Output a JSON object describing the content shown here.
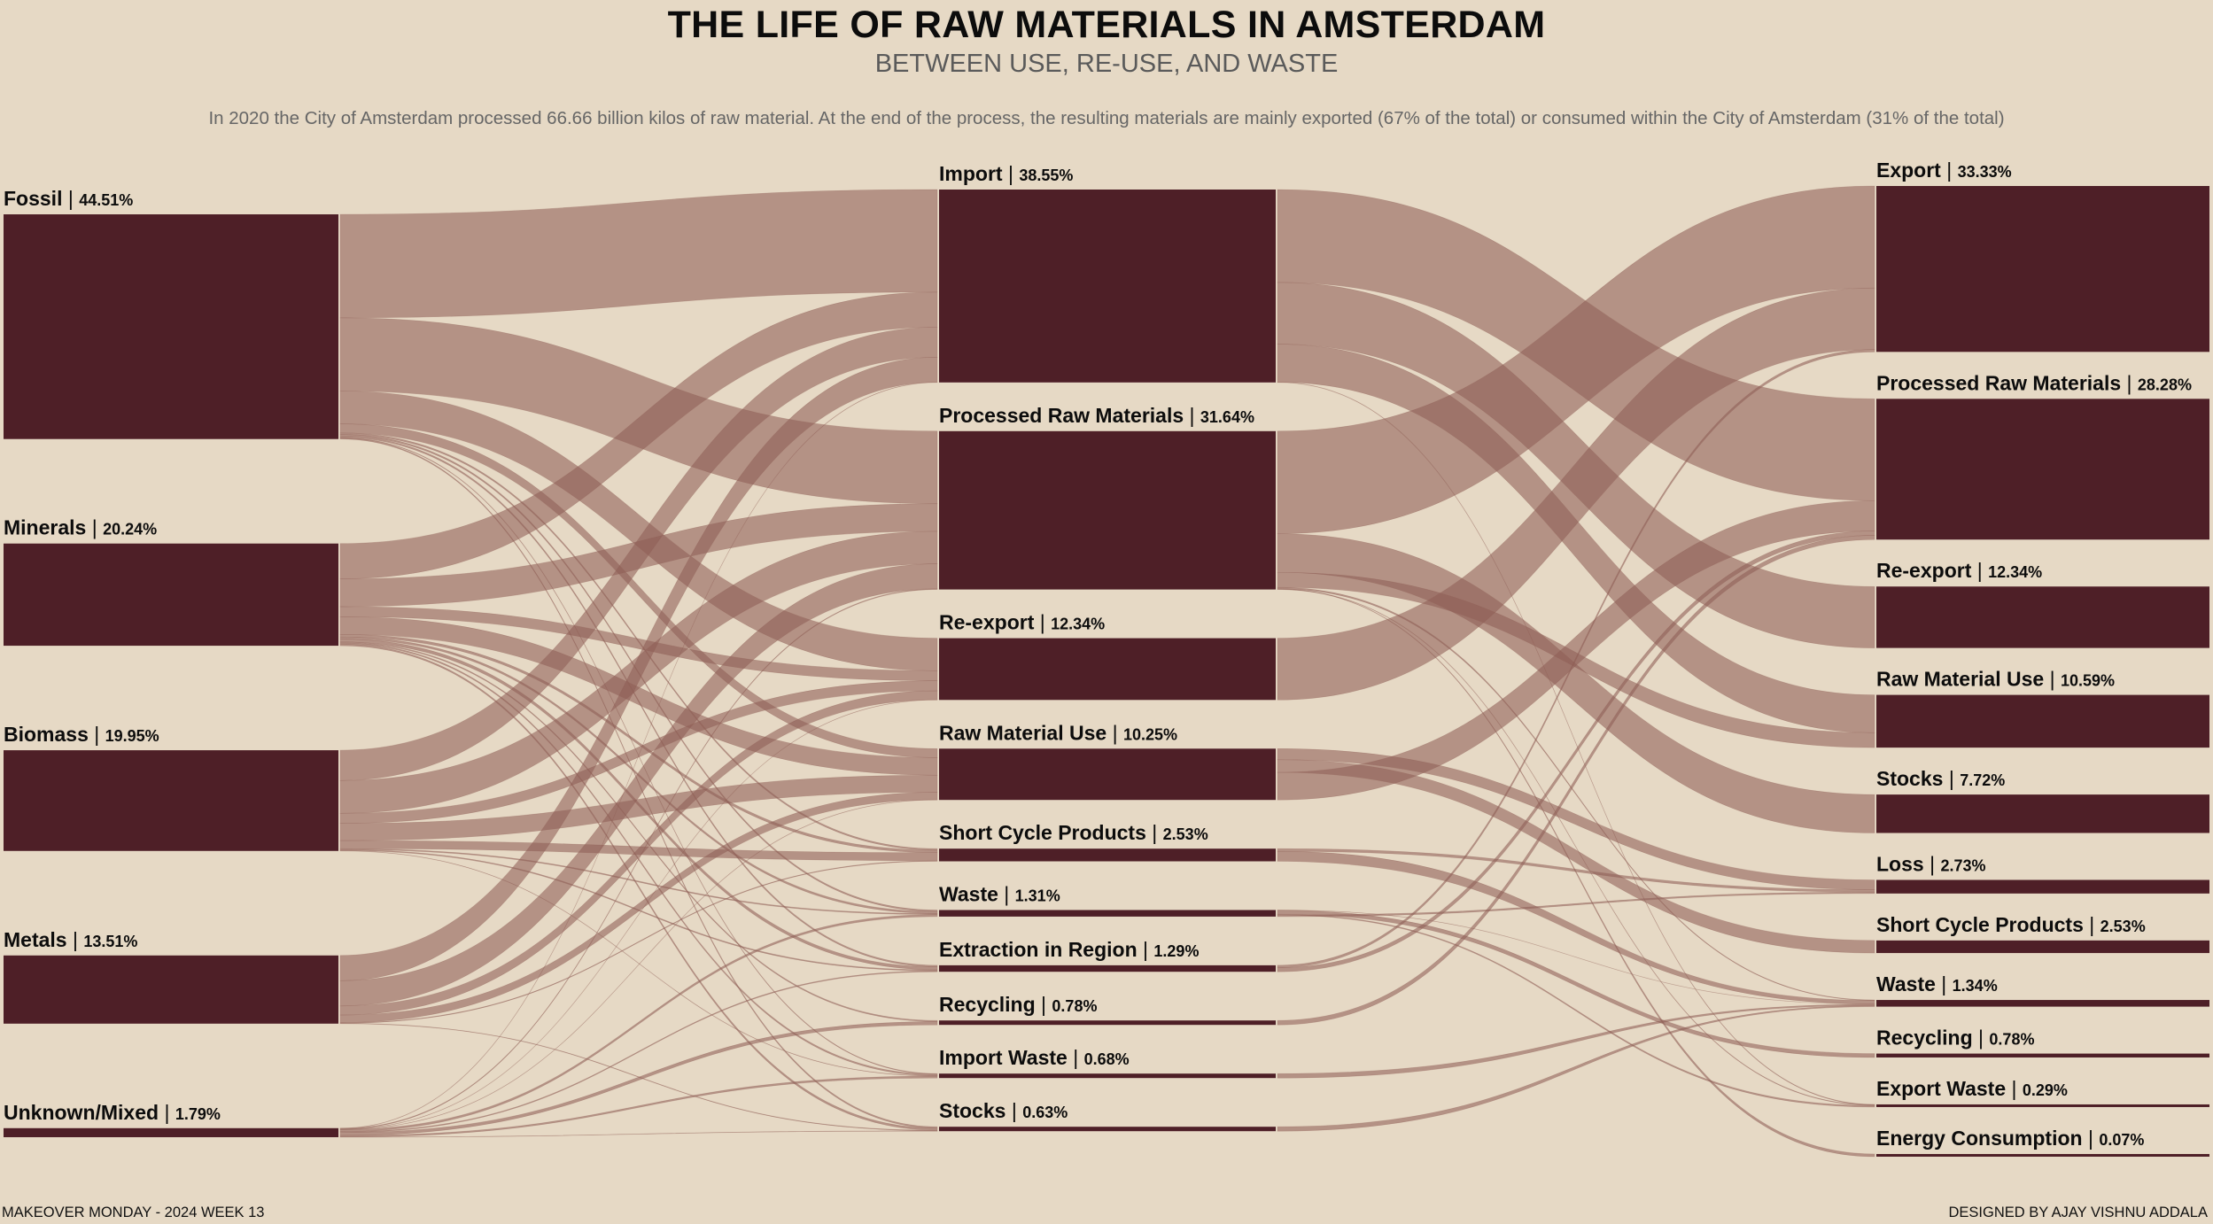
{
  "header": {
    "title": "THE LIFE OF RAW MATERIALS IN AMSTERDAM",
    "subtitle": "BETWEEN USE, RE-USE, AND WASTE",
    "description": "In 2020 the City of Amsterdam processed 66.66 billion kilos of raw material. At the end of the process, the resulting materials are mainly exported (67% of the total) or consumed within the City of Amsterdam (31% of the total)"
  },
  "footer": {
    "left": "MAKEOVER MONDAY - 2024 WEEK 13",
    "right": "DESIGNED BY AJAY VISHNU ADDALA"
  },
  "colors": {
    "background": "#e6d9c5",
    "node": "#4e1f27",
    "link": "#8f5f57"
  },
  "chart_data": {
    "type": "sankey",
    "title": "THE LIFE OF RAW MATERIALS IN AMSTERDAM",
    "unit": "% of total",
    "columns": [
      [
        {
          "id": "src_fossil",
          "name": "Fossil",
          "pct": 44.51,
          "label": "44.51%"
        },
        {
          "id": "src_minerals",
          "name": "Minerals",
          "pct": 20.24,
          "label": "20.24%"
        },
        {
          "id": "src_biomass",
          "name": "Biomass",
          "pct": 19.95,
          "label": "19.95%"
        },
        {
          "id": "src_metals",
          "name": "Metals",
          "pct": 13.51,
          "label": "13.51%"
        },
        {
          "id": "src_unknown",
          "name": "Unknown/Mixed",
          "pct": 1.79,
          "label": "1.79%"
        }
      ],
      [
        {
          "id": "mid_import",
          "name": "Import",
          "pct": 38.55,
          "label": "38.55%"
        },
        {
          "id": "mid_processed",
          "name": "Processed Raw Materials",
          "pct": 31.64,
          "label": "31.64%"
        },
        {
          "id": "mid_reexport",
          "name": "Re-export",
          "pct": 12.34,
          "label": "12.34%"
        },
        {
          "id": "mid_rawuse",
          "name": "Raw Material Use",
          "pct": 10.25,
          "label": "10.25%"
        },
        {
          "id": "mid_shortcycle",
          "name": "Short Cycle Products",
          "pct": 2.53,
          "label": "2.53%"
        },
        {
          "id": "mid_waste",
          "name": "Waste",
          "pct": 1.31,
          "label": "1.31%"
        },
        {
          "id": "mid_extraction",
          "name": "Extraction in Region",
          "pct": 1.29,
          "label": "1.29%"
        },
        {
          "id": "mid_recycling",
          "name": "Recycling",
          "pct": 0.78,
          "label": "0.78%"
        },
        {
          "id": "mid_importwaste",
          "name": "Import Waste",
          "pct": 0.68,
          "label": "0.68%"
        },
        {
          "id": "mid_stocks",
          "name": "Stocks",
          "pct": 0.63,
          "label": "0.63%"
        }
      ],
      [
        {
          "id": "dst_export",
          "name": "Export",
          "pct": 33.33,
          "label": "33.33%"
        },
        {
          "id": "dst_processed",
          "name": "Processed Raw Materials",
          "pct": 28.28,
          "label": "28.28%"
        },
        {
          "id": "dst_reexport",
          "name": "Re-export",
          "pct": 12.34,
          "label": "12.34%"
        },
        {
          "id": "dst_rawuse",
          "name": "Raw Material Use",
          "pct": 10.59,
          "label": "10.59%"
        },
        {
          "id": "dst_stocks",
          "name": "Stocks",
          "pct": 7.72,
          "label": "7.72%"
        },
        {
          "id": "dst_loss",
          "name": "Loss",
          "pct": 2.73,
          "label": "2.73%"
        },
        {
          "id": "dst_shortcycle",
          "name": "Short Cycle Products",
          "pct": 2.53,
          "label": "2.53%"
        },
        {
          "id": "dst_waste",
          "name": "Waste",
          "pct": 1.34,
          "label": "1.34%"
        },
        {
          "id": "dst_recycling",
          "name": "Recycling",
          "pct": 0.78,
          "label": "0.78%"
        },
        {
          "id": "dst_exportwaste",
          "name": "Export Waste",
          "pct": 0.29,
          "label": "0.29%"
        },
        {
          "id": "dst_energy",
          "name": "Energy Consumption",
          "pct": 0.07,
          "label": "0.07%"
        }
      ]
    ],
    "links": [
      {
        "source": "src_fossil",
        "target": "mid_import",
        "value": 20.5
      },
      {
        "source": "src_fossil",
        "target": "mid_processed",
        "value": 14.5
      },
      {
        "source": "src_fossil",
        "target": "mid_reexport",
        "value": 6.5
      },
      {
        "source": "src_fossil",
        "target": "mid_rawuse",
        "value": 1.8
      },
      {
        "source": "src_fossil",
        "target": "mid_shortcycle",
        "value": 0.3
      },
      {
        "source": "src_fossil",
        "target": "mid_waste",
        "value": 0.3
      },
      {
        "source": "src_fossil",
        "target": "mid_extraction",
        "value": 0.31
      },
      {
        "source": "src_fossil",
        "target": "mid_importwaste",
        "value": 0.1
      },
      {
        "source": "src_fossil",
        "target": "mid_stocks",
        "value": 0.2
      },
      {
        "source": "src_minerals",
        "target": "mid_import",
        "value": 7.0
      },
      {
        "source": "src_minerals",
        "target": "mid_processed",
        "value": 5.5
      },
      {
        "source": "src_minerals",
        "target": "mid_reexport",
        "value": 2.0
      },
      {
        "source": "src_minerals",
        "target": "mid_rawuse",
        "value": 3.5
      },
      {
        "source": "src_minerals",
        "target": "mid_shortcycle",
        "value": 0.5
      },
      {
        "source": "src_minerals",
        "target": "mid_waste",
        "value": 0.4
      },
      {
        "source": "src_minerals",
        "target": "mid_extraction",
        "value": 0.6
      },
      {
        "source": "src_minerals",
        "target": "mid_recycling",
        "value": 0.2
      },
      {
        "source": "src_minerals",
        "target": "mid_importwaste",
        "value": 0.24
      },
      {
        "source": "src_minerals",
        "target": "mid_stocks",
        "value": 0.3
      },
      {
        "source": "src_biomass",
        "target": "mid_import",
        "value": 6.0
      },
      {
        "source": "src_biomass",
        "target": "mid_processed",
        "value": 6.5
      },
      {
        "source": "src_biomass",
        "target": "mid_reexport",
        "value": 2.0
      },
      {
        "source": "src_biomass",
        "target": "mid_rawuse",
        "value": 3.4
      },
      {
        "source": "src_biomass",
        "target": "mid_shortcycle",
        "value": 1.6
      },
      {
        "source": "src_biomass",
        "target": "mid_waste",
        "value": 0.2
      },
      {
        "source": "src_biomass",
        "target": "mid_extraction",
        "value": 0.2
      },
      {
        "source": "src_biomass",
        "target": "mid_importwaste",
        "value": 0.05
      },
      {
        "source": "src_metals",
        "target": "mid_import",
        "value": 5.0
      },
      {
        "source": "src_metals",
        "target": "mid_processed",
        "value": 5.0
      },
      {
        "source": "src_metals",
        "target": "mid_reexport",
        "value": 1.8
      },
      {
        "source": "src_metals",
        "target": "mid_rawuse",
        "value": 1.5
      },
      {
        "source": "src_metals",
        "target": "mid_shortcycle",
        "value": 0.13
      },
      {
        "source": "src_metals",
        "target": "mid_stocks",
        "value": 0.08
      },
      {
        "source": "src_unknown",
        "target": "mid_import",
        "value": 0.05
      },
      {
        "source": "src_unknown",
        "target": "mid_processed",
        "value": 0.14
      },
      {
        "source": "src_unknown",
        "target": "mid_reexport",
        "value": 0.04
      },
      {
        "source": "src_unknown",
        "target": "mid_rawuse",
        "value": 0.05
      },
      {
        "source": "src_unknown",
        "target": "mid_waste",
        "value": 0.41
      },
      {
        "source": "src_unknown",
        "target": "mid_extraction",
        "value": 0.18
      },
      {
        "source": "src_unknown",
        "target": "mid_recycling",
        "value": 0.58
      },
      {
        "source": "src_unknown",
        "target": "mid_importwaste",
        "value": 0.29
      },
      {
        "source": "src_unknown",
        "target": "mid_stocks",
        "value": 0.05
      },
      {
        "source": "mid_import",
        "target": "dst_processed",
        "value": 18.55
      },
      {
        "source": "mid_import",
        "target": "dst_reexport",
        "value": 12.34
      },
      {
        "source": "mid_import",
        "target": "dst_rawuse",
        "value": 7.6
      },
      {
        "source": "mid_import",
        "target": "dst_exportwaste",
        "value": 0.06
      },
      {
        "source": "mid_processed",
        "target": "dst_export",
        "value": 20.5
      },
      {
        "source": "mid_processed",
        "target": "dst_stocks",
        "value": 7.72
      },
      {
        "source": "mid_processed",
        "target": "dst_rawuse",
        "value": 2.99
      },
      {
        "source": "mid_processed",
        "target": "dst_waste",
        "value": 0.3
      },
      {
        "source": "mid_processed",
        "target": "dst_energy",
        "value": 0.07
      },
      {
        "source": "mid_processed",
        "target": "dst_exportwaste",
        "value": 0.06
      },
      {
        "source": "mid_reexport",
        "target": "dst_export",
        "value": 12.34
      },
      {
        "source": "mid_rawuse",
        "target": "dst_loss",
        "value": 2.2
      },
      {
        "source": "mid_rawuse",
        "target": "dst_shortcycle",
        "value": 2.53
      },
      {
        "source": "mid_rawuse",
        "target": "dst_processed",
        "value": 5.52
      },
      {
        "source": "mid_shortcycle",
        "target": "dst_loss",
        "value": 0.53
      },
      {
        "source": "mid_shortcycle",
        "target": "dst_waste",
        "value": 2.0
      },
      {
        "source": "mid_waste",
        "target": "dst_waste",
        "value": 0.04
      },
      {
        "source": "mid_waste",
        "target": "dst_recycling",
        "value": 0.78
      },
      {
        "source": "mid_waste",
        "target": "dst_exportwaste",
        "value": 0.17
      },
      {
        "source": "mid_waste",
        "target": "dst_loss",
        "value": 0.32
      },
      {
        "source": "mid_extraction",
        "target": "dst_export",
        "value": 0.49
      },
      {
        "source": "mid_extraction",
        "target": "dst_processed",
        "value": 0.8
      },
      {
        "source": "mid_recycling",
        "target": "dst_processed",
        "value": 0.78
      },
      {
        "source": "mid_importwaste",
        "target": "dst_waste",
        "value": 0.68
      },
      {
        "source": "mid_stocks",
        "target": "dst_waste",
        "value": 0.63
      }
    ]
  }
}
